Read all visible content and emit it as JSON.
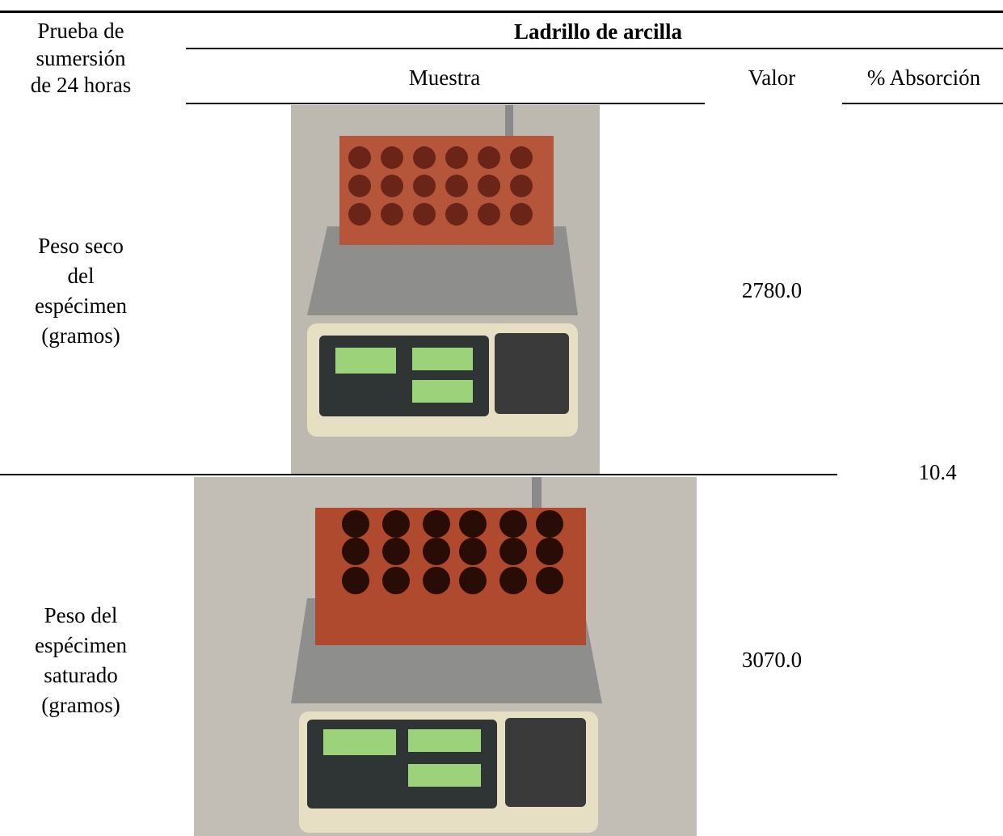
{
  "table": {
    "header": {
      "first_column": [
        "Prueba de",
        "sumersión",
        "de 24 horas"
      ],
      "group": "Ladrillo de arcilla",
      "columns": [
        "Muestra",
        "Valor",
        "% Absorción"
      ]
    },
    "rows": [
      {
        "label": [
          "Peso seco",
          "del",
          "espécimen",
          "(gramos)"
        ],
        "value": "2780.0"
      },
      {
        "label": [
          "Peso del",
          "espécimen",
          "saturado",
          "(gramos)"
        ],
        "value": "3070.0"
      }
    ],
    "absorption": "10.4"
  }
}
